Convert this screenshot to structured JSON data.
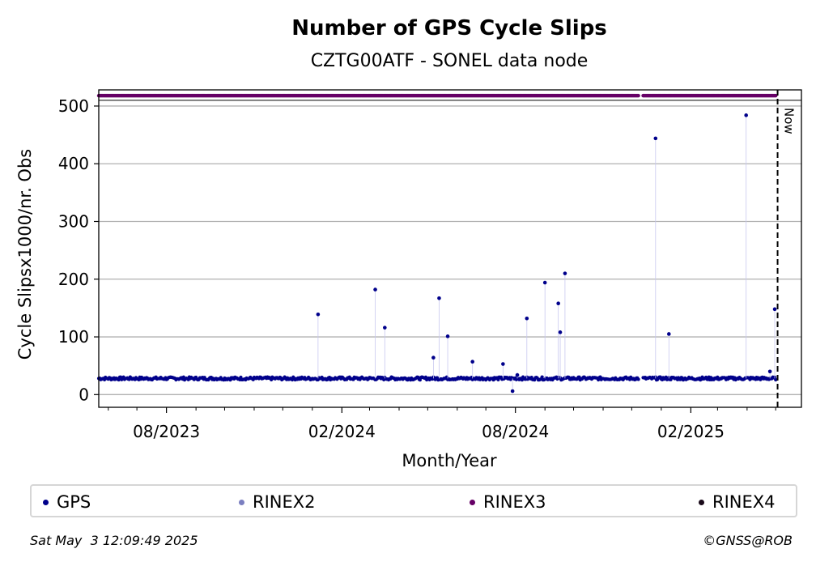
{
  "chart_data": {
    "type": "scatter",
    "title": "Number of GPS Cycle Slips",
    "subtitle": "CZTG00ATF - SONEL data node",
    "xlabel": "Month/Year",
    "ylabel": "Cycle Slipsx1000/nr. Obs",
    "ylim": [
      -22,
      528
    ],
    "xlim": [
      "2023-05-22",
      "2025-05-28"
    ],
    "yticks": [
      0,
      100,
      200,
      300,
      400,
      500
    ],
    "xticks": [
      {
        "date": "2023-08-01",
        "label": "08/2023"
      },
      {
        "date": "2024-02-01",
        "label": "02/2024"
      },
      {
        "date": "2024-08-01",
        "label": "08/2024"
      },
      {
        "date": "2025-02-01",
        "label": "02/2025"
      }
    ],
    "minor_ticks": [
      "2023-06-01",
      "2023-07-01",
      "2023-09-01",
      "2023-10-01",
      "2023-11-01",
      "2023-12-01",
      "2024-01-01",
      "2024-03-01",
      "2024-04-01",
      "2024-05-01",
      "2024-06-01",
      "2024-07-01",
      "2024-09-01",
      "2024-10-01",
      "2024-11-01",
      "2024-12-01",
      "2025-01-01",
      "2025-03-01",
      "2025-04-01",
      "2025-05-01"
    ],
    "now_label": "Now",
    "now_date": "2025-05-03",
    "grid": "horizontal",
    "legend_position": "bottom",
    "baseline": 28,
    "data_start": "2023-05-22",
    "data_end": "2025-05-01",
    "gaps": [
      [
        "2024-12-09",
        "2024-12-12"
      ]
    ],
    "rinex3_level": 518,
    "rinex3_gaps": [
      [
        "2024-12-09",
        "2024-12-12"
      ]
    ],
    "series": [
      {
        "name": "GPS",
        "color": "#00008b",
        "outliers": [
          {
            "x": "2024-01-07",
            "y": 139
          },
          {
            "x": "2024-03-07",
            "y": 182
          },
          {
            "x": "2024-03-17",
            "y": 116
          },
          {
            "x": "2024-05-07",
            "y": 64
          },
          {
            "x": "2024-05-13",
            "y": 167
          },
          {
            "x": "2024-05-22",
            "y": 101
          },
          {
            "x": "2024-06-17",
            "y": 57
          },
          {
            "x": "2024-07-19",
            "y": 53
          },
          {
            "x": "2024-07-29",
            "y": 6
          },
          {
            "x": "2024-08-03",
            "y": 34
          },
          {
            "x": "2024-08-13",
            "y": 132
          },
          {
            "x": "2024-09-01",
            "y": 194
          },
          {
            "x": "2024-09-15",
            "y": 158
          },
          {
            "x": "2024-09-17",
            "y": 108
          },
          {
            "x": "2024-09-22",
            "y": 210
          },
          {
            "x": "2024-12-26",
            "y": 444
          },
          {
            "x": "2025-01-09",
            "y": 105
          },
          {
            "x": "2025-03-31",
            "y": 484
          },
          {
            "x": "2025-04-25",
            "y": 40
          },
          {
            "x": "2025-04-30",
            "y": 148
          }
        ]
      },
      {
        "name": "RINEX2",
        "color": "#7b7fc0"
      },
      {
        "name": "RINEX3",
        "color": "#660066"
      },
      {
        "name": "RINEX4",
        "color": "#1a0a1a"
      }
    ]
  },
  "footer": {
    "timestamp": "Sat May  3 12:09:49 2025",
    "copyright": "©GNSS@ROB"
  }
}
